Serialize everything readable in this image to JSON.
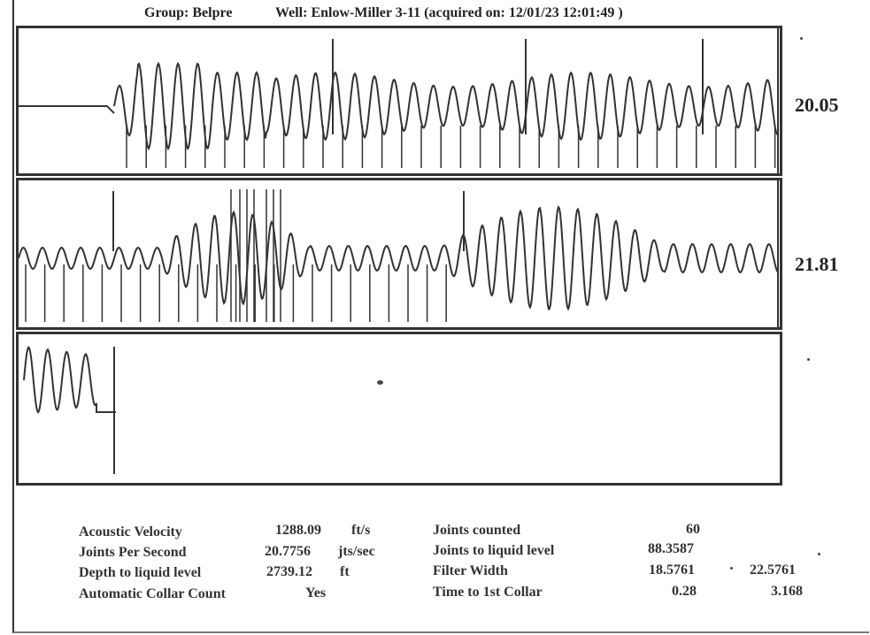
{
  "header": {
    "group_text": "Group: Belpre",
    "well_text": "Well: Enlow-Miller 3-11 (acquired on: 12/01/23 12:01:49 )"
  },
  "traces": [
    {
      "id": "trace-1",
      "value": "20.05"
    },
    {
      "id": "trace-2",
      "value": "21.81"
    },
    {
      "id": "trace-3",
      "value": ""
    }
  ],
  "results": {
    "left": [
      {
        "label": "Acoustic Velocity",
        "value": "1288.09",
        "unit": "ft/s"
      },
      {
        "label": "Joints Per Second",
        "value": "20.7756",
        "unit": "jts/sec"
      },
      {
        "label": "Depth to liquid level",
        "value": "2739.12",
        "unit": "ft"
      },
      {
        "label": "Automatic Collar Count",
        "value": "Yes",
        "unit": ""
      }
    ],
    "right": [
      {
        "label": "Joints counted",
        "value": "60",
        "value2": ""
      },
      {
        "label": "Joints to liquid level",
        "value": "88.3587",
        "value2": ""
      },
      {
        "label": "Filter Width",
        "value": "18.5761",
        "value2": "22.5761"
      },
      {
        "label": "Time to 1st Collar",
        "value": "0.28",
        "value2": "3.168"
      }
    ]
  }
}
